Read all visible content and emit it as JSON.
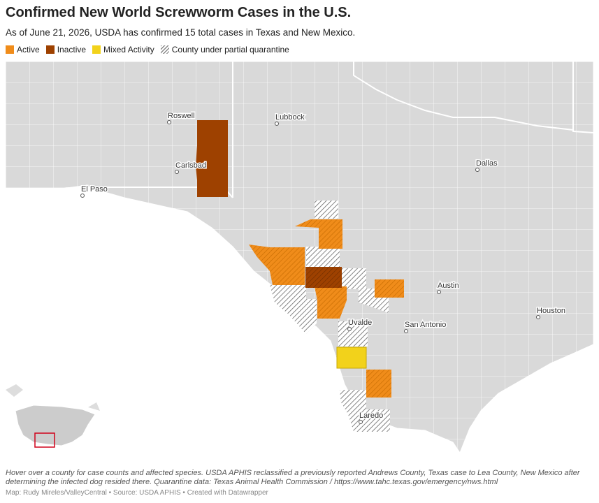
{
  "header": {
    "title": "Confirmed New World Screwworm Cases in the U.S.",
    "subtitle": "As of June 21, 2026, USDA has confirmed 15 total cases in Texas and New Mexico."
  },
  "legend": [
    {
      "label": "Active",
      "color": "#f08c1a"
    },
    {
      "label": "Inactive",
      "color": "#9e4100"
    },
    {
      "label": "Mixed Activity",
      "color": "#f2d21b"
    },
    {
      "label": "County under partial quarantine",
      "color": "hatch"
    }
  ],
  "map": {
    "cities": [
      "Roswell",
      "Lubbock",
      "Carlsbad",
      "Dallas",
      "El Paso",
      "Austin",
      "Houston",
      "San Antonio",
      "Uvalde",
      "Laredo"
    ]
  },
  "notes": "Hover over a county for case counts and affected species. USDA APHIS reclassified a previously reported Andrews County, Texas case to Lea County, New Mexico after determining the infected dog resided there. Quarantine data: Texas Animal Health Commission / https://www.tahc.texas.gov/emergency/nws.html",
  "footer": "Map: Rudy Mireles/ValleyCentral • Source: USDA APHIS • Created with Datawrapper"
}
